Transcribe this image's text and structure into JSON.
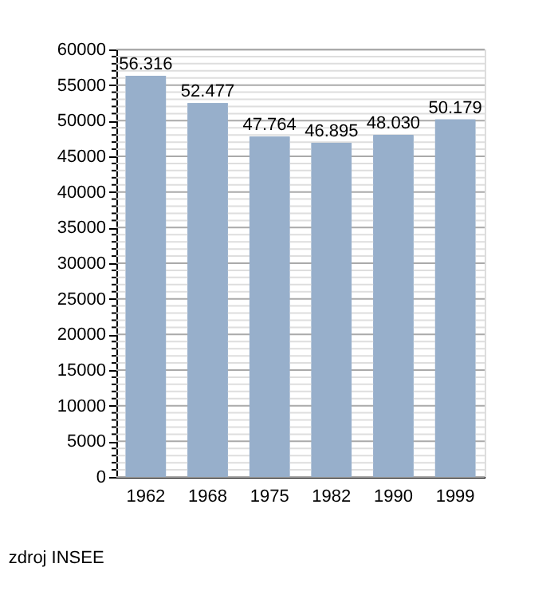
{
  "chart_data": {
    "type": "bar",
    "categories": [
      "1962",
      "1968",
      "1975",
      "1982",
      "1990",
      "1999"
    ],
    "values": [
      56316,
      52477,
      47764,
      46895,
      48030,
      50179
    ],
    "value_labels": [
      "56.316",
      "52.477",
      "47.764",
      "46.895",
      "48.030",
      "50.179"
    ],
    "color": "#97afcb",
    "ylim": [
      0,
      60000
    ],
    "yticks": [
      0,
      {
        "value": 1000,
        "label": null
      },
      {
        "value": 2000,
        "label": null
      },
      {
        "value": 3000,
        "label": null
      },
      {
        "value": 4000,
        "label": null
      },
      5000,
      {
        "value": 6000,
        "label": null
      },
      {
        "value": 7000,
        "label": null
      },
      {
        "value": 8000,
        "label": null
      },
      {
        "value": 9000,
        "label": null
      },
      10000,
      {
        "value": 11000,
        "label": null
      },
      {
        "value": 12000,
        "label": null
      },
      {
        "value": 13000,
        "label": null
      },
      {
        "value": 14000,
        "label": null
      },
      15000,
      {
        "value": 16000,
        "label": null
      },
      {
        "value": 17000,
        "label": null
      },
      {
        "value": 18000,
        "label": null
      },
      {
        "value": 19000,
        "label": null
      },
      20000,
      {
        "value": 21000,
        "label": null
      },
      {
        "value": 22000,
        "label": null
      },
      {
        "value": 23000,
        "label": null
      },
      {
        "value": 24000,
        "label": null
      },
      25000,
      {
        "value": 26000,
        "label": null
      },
      {
        "value": 27000,
        "label": null
      },
      {
        "value": 28000,
        "label": null
      },
      {
        "value": 29000,
        "label": null
      },
      30000,
      {
        "value": 31000,
        "label": null
      },
      {
        "value": 32000,
        "label": null
      },
      {
        "value": 33000,
        "label": null
      },
      {
        "value": 34000,
        "label": null
      },
      35000,
      {
        "value": 36000,
        "label": null
      },
      {
        "value": 37000,
        "label": null
      },
      {
        "value": 38000,
        "label": null
      },
      {
        "value": 39000,
        "label": null
      },
      40000,
      {
        "value": 41000,
        "label": null
      },
      {
        "value": 42000,
        "label": null
      },
      {
        "value": 43000,
        "label": null
      },
      {
        "value": 44000,
        "label": null
      },
      45000,
      {
        "value": 46000,
        "label": null
      },
      {
        "value": 47000,
        "label": null
      },
      {
        "value": 48000,
        "label": null
      },
      {
        "value": 49000,
        "label": null
      },
      50000,
      {
        "value": 51000,
        "label": null
      },
      {
        "value": 52000,
        "label": null
      },
      {
        "value": 53000,
        "label": null
      },
      {
        "value": 54000,
        "label": null
      },
      55000,
      {
        "value": 56000,
        "label": null
      },
      {
        "value": 57000,
        "label": null
      },
      {
        "value": 58000,
        "label": null
      },
      {
        "value": 59000,
        "label": null
      },
      60000
    ],
    "grid": "y",
    "annotations": [
      "zdroj INSEE"
    ]
  }
}
